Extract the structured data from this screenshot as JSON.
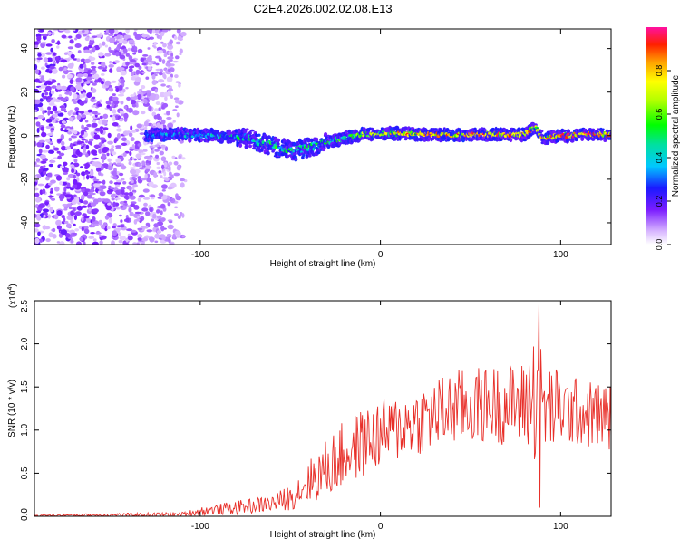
{
  "figure": {
    "title": "C2E4.2026.002.02.08.E13"
  },
  "chart_data": [
    {
      "type": "heatmap",
      "xlabel": "Height of straight line (km)",
      "ylabel": "Frequency (Hz)",
      "xlim": [
        -192,
        128
      ],
      "ylim": [
        -50,
        49
      ],
      "xticks": [
        -100,
        0,
        100
      ],
      "yticks": [
        -40,
        -20,
        0,
        20,
        40
      ],
      "colorbar": {
        "label": "Normalized spectral amplitude",
        "range": [
          0.0,
          1.0
        ],
        "ticks": [
          0.0,
          0.2,
          0.4,
          0.6,
          0.8
        ],
        "tick_labels": [
          "0.0",
          "0.2",
          "0.4",
          "0.6",
          "0.8"
        ]
      },
      "noise_region_x": [
        -192,
        -108
      ],
      "ridge": {
        "x": [
          -130,
          -110,
          -90,
          -75,
          -60,
          -50,
          -40,
          -30,
          -20,
          -10,
          0,
          20,
          40,
          60,
          80,
          86,
          90,
          110,
          128
        ],
        "freq": [
          0.5,
          0.5,
          0.0,
          -1.0,
          -4.5,
          -7.0,
          -5.5,
          -3.0,
          -1.0,
          0.5,
          1.0,
          0.8,
          0.3,
          0.5,
          0.5,
          4.0,
          -1.0,
          0.5,
          0.5
        ],
        "amplitude": [
          0.35,
          0.45,
          0.5,
          0.5,
          0.55,
          0.55,
          0.5,
          0.55,
          0.6,
          0.7,
          0.8,
          0.9,
          0.9,
          0.95,
          0.9,
          0.85,
          0.9,
          0.95,
          0.95
        ]
      }
    },
    {
      "type": "line",
      "xlabel": "Height of straight line (km)",
      "ylabel": "SNR (10 * v/v)",
      "y_multiplier": "(x10",
      "y_multiplier_exp": "4",
      "y_multiplier_close": ")",
      "xlim": [
        -192,
        128
      ],
      "ylim": [
        0,
        2.5
      ],
      "xticks": [
        -100,
        0,
        100
      ],
      "yticks": [
        0.0,
        0.5,
        1.0,
        1.5,
        2.0,
        2.5
      ],
      "ytick_labels": [
        "0.0",
        "0.5",
        "1.0",
        "1.5",
        "2.0",
        "2.5"
      ],
      "series": [
        {
          "name": "SNR",
          "color": "#e8302a",
          "envelope_x": [
            -192,
            -110,
            -100,
            -80,
            -60,
            -50,
            -40,
            -30,
            -20,
            -10,
            0,
            20,
            40,
            60,
            80,
            87,
            90,
            100,
            110,
            128
          ],
          "envelope_mean": [
            0.01,
            0.02,
            0.06,
            0.1,
            0.15,
            0.22,
            0.4,
            0.55,
            0.72,
            0.85,
            0.95,
            1.1,
            1.25,
            1.3,
            1.3,
            1.45,
            1.25,
            1.25,
            1.2,
            1.15
          ],
          "envelope_spread": [
            0.01,
            0.03,
            0.05,
            0.08,
            0.1,
            0.15,
            0.25,
            0.35,
            0.4,
            0.4,
            0.4,
            0.4,
            0.45,
            0.45,
            0.5,
            0.9,
            0.6,
            0.45,
            0.4,
            0.4
          ]
        }
      ]
    }
  ],
  "colors": {
    "axis": "#000000",
    "snr_line": "#e8302a"
  }
}
